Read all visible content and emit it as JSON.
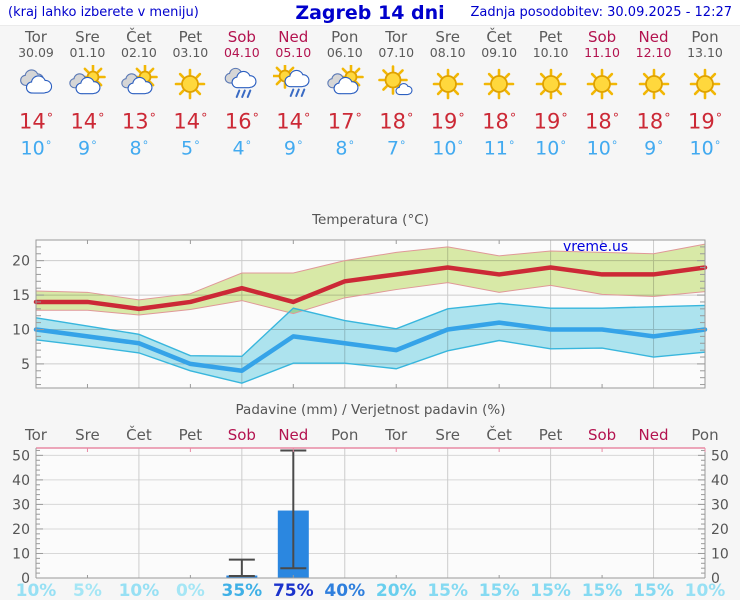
{
  "header": {
    "menu_note": "(kraj lahko izberete v meniju)",
    "title": "Zagreb 14 dni",
    "last_update": "Zadnja posodobitev: 30.09.2025 - 12:27"
  },
  "labels": {
    "degree": "°"
  },
  "watermark": "vreme.us",
  "colors": {
    "page_bg": "#f6f6f6",
    "plot_bg": "#fbfbfb",
    "header_text": "#0000cc",
    "weekday": "#5a5a5a",
    "weekend": "#b3134f",
    "tmax": "#cc2936",
    "tmin": "#42aaf0",
    "max_line": "#cc2936",
    "max_band": "#dcedaa",
    "max_band_edge": "#e09898",
    "min_line": "#35a3e8",
    "min_band": "#b0e7f2",
    "min_band_edge": "#38b6dd",
    "bar": "#2b87e0",
    "whisker": "#4a4a4a",
    "frame": "#9a9a9a",
    "grid": "#cccccc",
    "precip_frame_top": "#e88aa4",
    "chart_text": "#555555",
    "watermark_color": "#0000dd"
  },
  "days": [
    {
      "name": "Tor",
      "date": "30.09",
      "weekend": false,
      "icon": "cloudy",
      "tmax": "14",
      "tmin": "10",
      "precip_prob": "10%",
      "prob_color": "#97e0f4"
    },
    {
      "name": "Sre",
      "date": "01.10",
      "weekend": false,
      "icon": "partly-cloudy",
      "tmax": "14",
      "tmin": "9",
      "precip_prob": "5%",
      "prob_color": "#a5e6f5"
    },
    {
      "name": "Čet",
      "date": "02.10",
      "weekend": false,
      "icon": "partly-cloudy",
      "tmax": "13",
      "tmin": "8",
      "precip_prob": "10%",
      "prob_color": "#97e0f4"
    },
    {
      "name": "Pet",
      "date": "03.10",
      "weekend": false,
      "icon": "sunny",
      "tmax": "14",
      "tmin": "5",
      "precip_prob": "0%",
      "prob_color": "#a5e6f5"
    },
    {
      "name": "Sob",
      "date": "04.10",
      "weekend": true,
      "icon": "rain",
      "tmax": "16",
      "tmin": "4",
      "precip_prob": "35%",
      "prob_color": "#3fb0e6"
    },
    {
      "name": "Ned",
      "date": "05.10",
      "weekend": true,
      "icon": "sun-rain",
      "tmax": "14",
      "tmin": "9",
      "precip_prob": "75%",
      "prob_color": "#1b33cc"
    },
    {
      "name": "Pon",
      "date": "06.10",
      "weekend": false,
      "icon": "partly-cloudy",
      "tmax": "17",
      "tmin": "8",
      "precip_prob": "40%",
      "prob_color": "#2f7fdd"
    },
    {
      "name": "Tor",
      "date": "07.10",
      "weekend": false,
      "icon": "mostly-sunny",
      "tmax": "18",
      "tmin": "7",
      "precip_prob": "20%",
      "prob_color": "#69cfee"
    },
    {
      "name": "Sre",
      "date": "08.10",
      "weekend": false,
      "icon": "sunny",
      "tmax": "19",
      "tmin": "10",
      "precip_prob": "15%",
      "prob_color": "#85daf2"
    },
    {
      "name": "Čet",
      "date": "09.10",
      "weekend": false,
      "icon": "sunny",
      "tmax": "18",
      "tmin": "11",
      "precip_prob": "15%",
      "prob_color": "#85daf2"
    },
    {
      "name": "Pet",
      "date": "10.10",
      "weekend": false,
      "icon": "sunny",
      "tmax": "19",
      "tmin": "10",
      "precip_prob": "15%",
      "prob_color": "#85daf2"
    },
    {
      "name": "Sob",
      "date": "11.10",
      "weekend": true,
      "icon": "sunny",
      "tmax": "18",
      "tmin": "10",
      "precip_prob": "15%",
      "prob_color": "#85daf2"
    },
    {
      "name": "Ned",
      "date": "12.10",
      "weekend": true,
      "icon": "sunny",
      "tmax": "18",
      "tmin": "9",
      "precip_prob": "15%",
      "prob_color": "#85daf2"
    },
    {
      "name": "Pon",
      "date": "13.10",
      "weekend": false,
      "icon": "sunny",
      "tmax": "19",
      "tmin": "10",
      "precip_prob": "10%",
      "prob_color": "#97e0f4"
    }
  ],
  "chart_data": [
    {
      "type": "line",
      "title": "Temperatura (°C)",
      "categories": [
        "Tor",
        "Sre",
        "Čet",
        "Pet",
        "Sob",
        "Ned",
        "Pon",
        "Tor",
        "Sre",
        "Čet",
        "Pet",
        "Sob",
        "Ned",
        "Pon"
      ],
      "ylim": [
        1.5,
        23
      ],
      "yticks": [
        5,
        10,
        15,
        20
      ],
      "grid": true,
      "watermark": "vreme.us",
      "series": [
        {
          "name": "max temperature (°C)",
          "values": [
            14,
            14,
            13,
            14,
            16,
            14,
            17,
            18,
            19,
            18,
            19,
            18,
            18,
            19
          ],
          "band_upper": [
            15.6,
            15.4,
            14.3,
            15.2,
            18.2,
            18.2,
            20,
            21.2,
            22,
            20.7,
            21.4,
            21.2,
            21,
            22.4
          ],
          "band_lower": [
            12.8,
            12.8,
            12.1,
            12.9,
            14.2,
            12.3,
            14.6,
            15.8,
            16.8,
            15.4,
            16.4,
            15.1,
            14.8,
            15.5
          ]
        },
        {
          "name": "min temperature (°C)",
          "values": [
            10,
            9,
            8,
            5,
            4,
            9,
            8,
            7,
            10,
            11,
            10,
            10,
            9,
            10
          ],
          "band_upper": [
            11.7,
            10.5,
            9.3,
            6.2,
            6.1,
            13.1,
            11.3,
            10.1,
            13,
            13.8,
            13.1,
            13.1,
            13.3,
            13.5
          ],
          "band_lower": [
            8.5,
            7.6,
            6.6,
            4,
            2.2,
            5.1,
            5.1,
            4.3,
            6.9,
            8.4,
            7.2,
            7.3,
            6,
            6.7
          ]
        }
      ]
    },
    {
      "type": "bar",
      "title": "Padavine (mm) / Verjetnost padavin (%)",
      "categories": [
        "Tor",
        "Sre",
        "Čet",
        "Pet",
        "Sob",
        "Ned",
        "Pon",
        "Tor",
        "Sre",
        "Čet",
        "Pet",
        "Sob",
        "Ned",
        "Pon"
      ],
      "values": [
        0,
        0,
        0,
        0,
        1,
        27.5,
        0,
        0,
        0,
        0,
        0,
        0,
        0,
        0
      ],
      "whisker_low": [
        null,
        null,
        null,
        null,
        0.8,
        4,
        null,
        null,
        null,
        null,
        null,
        null,
        null,
        null
      ],
      "whisker_high": [
        null,
        null,
        null,
        null,
        7.5,
        52,
        null,
        null,
        null,
        null,
        null,
        null,
        null,
        null
      ],
      "probabilities": [
        "10%",
        "5%",
        "10%",
        "0%",
        "35%",
        "75%",
        "40%",
        "20%",
        "15%",
        "15%",
        "15%",
        "15%",
        "15%",
        "10%"
      ],
      "ylim": [
        0,
        53
      ],
      "yticks": [
        0,
        10,
        20,
        30,
        40,
        50
      ]
    }
  ]
}
